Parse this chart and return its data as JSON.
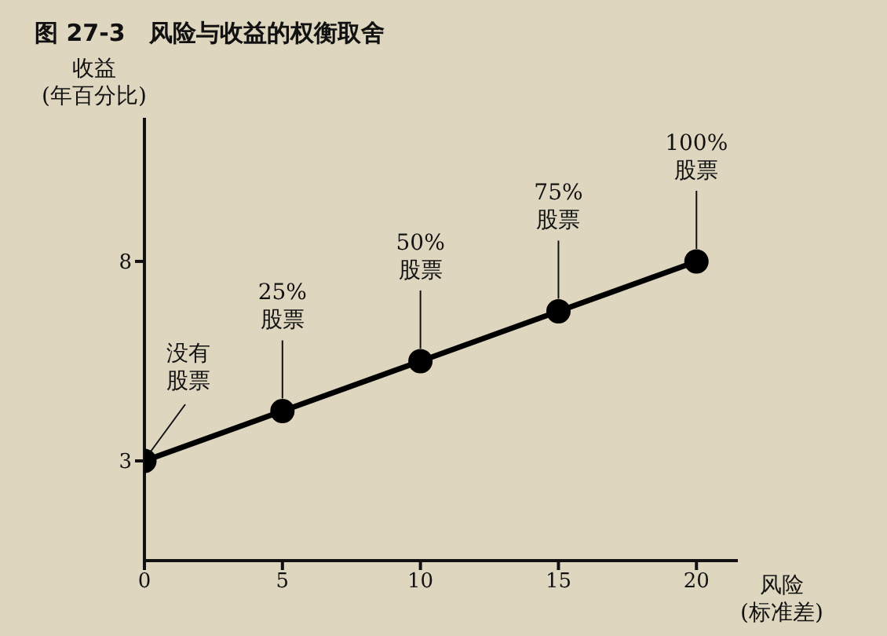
{
  "chart_data": {
    "type": "line",
    "title": "图 27-3　风险与收益的权衡取舍",
    "xlabel": "风险\n(标准差)",
    "ylabel": "收益\n(年百分比)",
    "x": [
      0,
      5,
      10,
      15,
      20
    ],
    "series": [
      {
        "color": "#000000",
        "values": [
          3,
          4.25,
          5.5,
          6.75,
          8
        ]
      }
    ],
    "xlim": [
      0,
      21.5
    ],
    "xticks": [
      0,
      5,
      10,
      15,
      20
    ],
    "ylim": [
      0.5,
      11.6
    ],
    "yticks": [
      3,
      8
    ],
    "marker": "circle",
    "line_style": "solid",
    "grid": false,
    "legend": false,
    "annotations": [
      {
        "text": "没有股票",
        "x": 0,
        "y": 3
      },
      {
        "text": "25%股票",
        "x": 5,
        "y": 4.25
      },
      {
        "text": "50%股票",
        "x": 10,
        "y": 5.5
      },
      {
        "text": "75%股票",
        "x": 15,
        "y": 6.75
      },
      {
        "text": "100%股票",
        "x": 20,
        "y": 8
      }
    ]
  }
}
